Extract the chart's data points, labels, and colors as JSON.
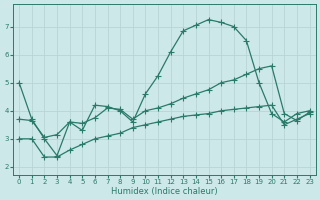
{
  "xlabel": "Humidex (Indice chaleur)",
  "xlim": [
    -0.5,
    23.5
  ],
  "ylim": [
    1.7,
    7.8
  ],
  "xticks": [
    0,
    1,
    2,
    3,
    4,
    5,
    6,
    7,
    8,
    9,
    10,
    11,
    12,
    13,
    14,
    15,
    16,
    17,
    18,
    19,
    20,
    21,
    22,
    23
  ],
  "yticks": [
    2,
    3,
    4,
    5,
    6,
    7
  ],
  "bg_color": "#cde8e8",
  "grid_color": "#b8d4d4",
  "line_color": "#2a7a6a",
  "series1_x": [
    0,
    1,
    2,
    3,
    4,
    5,
    6,
    7,
    8,
    9,
    10,
    11,
    12,
    13,
    14,
    15,
    16,
    17,
    18,
    19,
    20,
    21,
    22,
    23
  ],
  "series1_y": [
    5.0,
    3.7,
    3.0,
    2.4,
    3.6,
    3.3,
    4.2,
    4.15,
    4.0,
    3.6,
    4.6,
    5.25,
    6.1,
    6.85,
    7.05,
    7.25,
    7.15,
    7.0,
    6.5,
    5.0,
    3.9,
    3.6,
    3.9,
    4.0
  ],
  "series2_x": [
    0,
    1,
    2,
    3,
    4,
    5,
    6,
    7,
    8,
    9,
    10,
    11,
    12,
    13,
    14,
    15,
    16,
    17,
    18,
    19,
    20,
    21,
    22,
    23
  ],
  "series2_y": [
    3.7,
    3.65,
    3.05,
    3.15,
    3.6,
    3.55,
    3.75,
    4.1,
    4.05,
    3.7,
    4.0,
    4.1,
    4.25,
    4.45,
    4.6,
    4.75,
    5.0,
    5.1,
    5.3,
    5.5,
    5.6,
    3.9,
    3.65,
    3.95
  ],
  "series3_x": [
    0,
    1,
    2,
    3,
    4,
    5,
    6,
    7,
    8,
    9,
    10,
    11,
    12,
    13,
    14,
    15,
    16,
    17,
    18,
    19,
    20,
    21,
    22,
    23
  ],
  "series3_y": [
    3.0,
    3.0,
    2.35,
    2.35,
    2.6,
    2.8,
    3.0,
    3.1,
    3.2,
    3.4,
    3.5,
    3.6,
    3.7,
    3.8,
    3.85,
    3.9,
    4.0,
    4.05,
    4.1,
    4.15,
    4.2,
    3.5,
    3.7,
    3.9
  ]
}
